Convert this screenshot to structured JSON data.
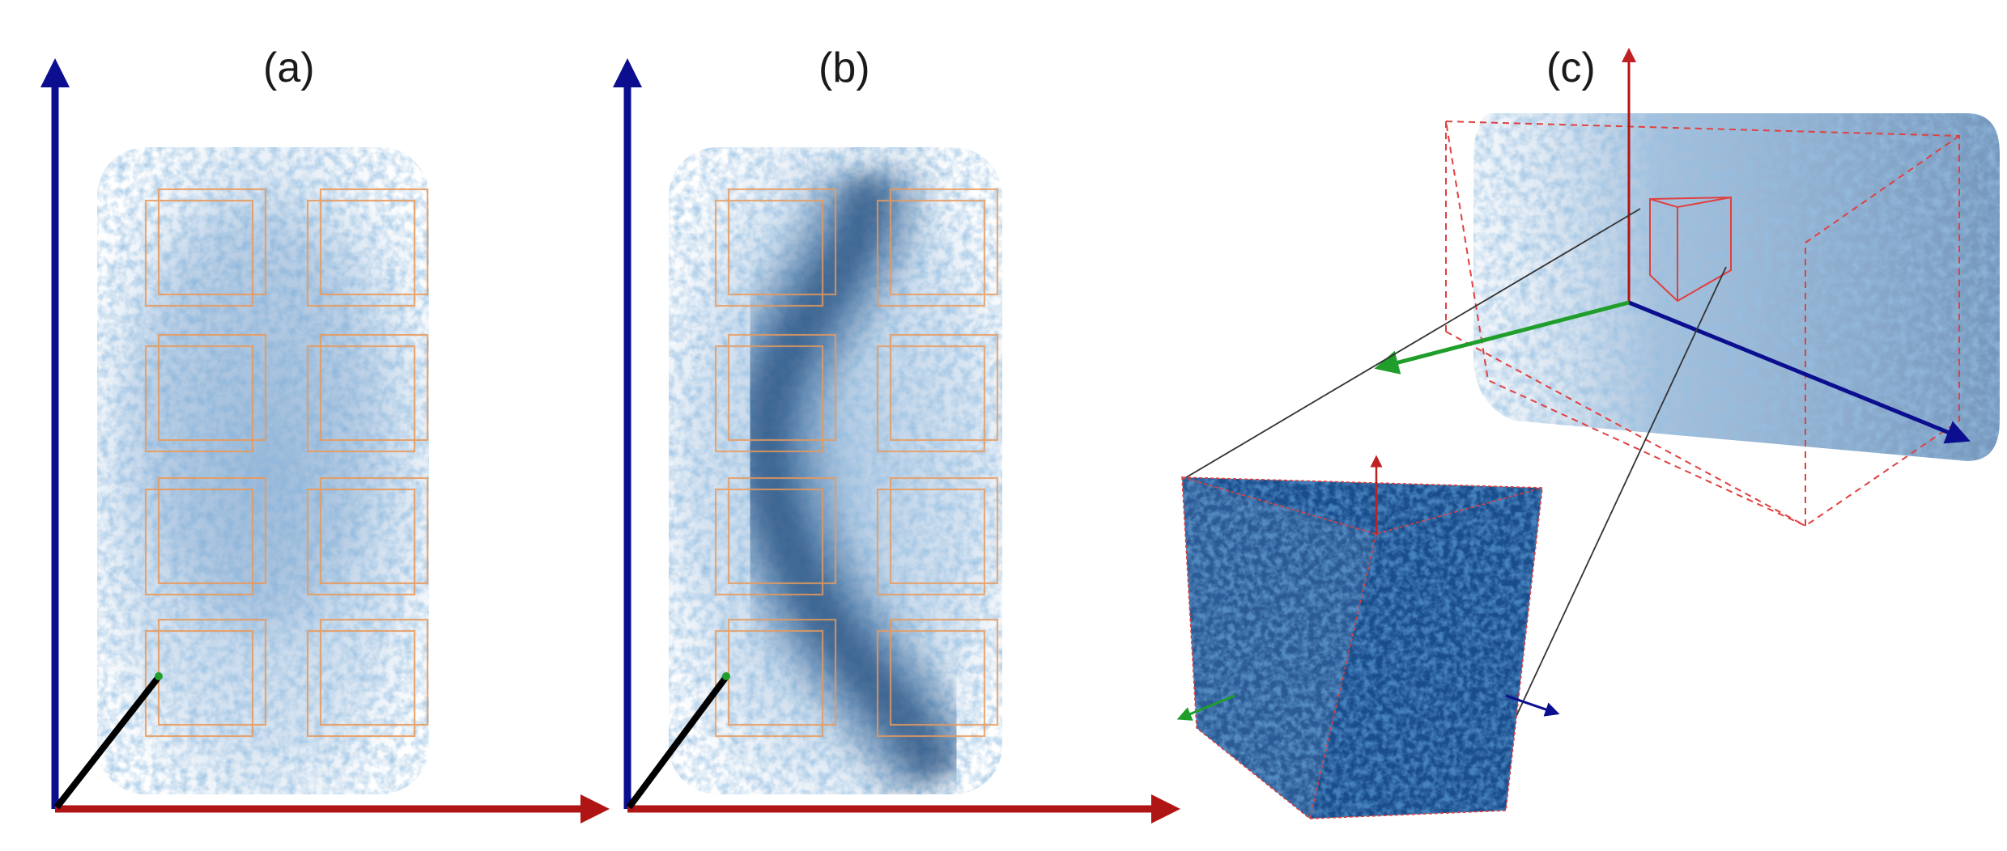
{
  "figure": {
    "panels": [
      {
        "id": "a",
        "label": "(a)",
        "sub_volume_boxes": 8
      },
      {
        "id": "b",
        "label": "(b)",
        "sub_volume_boxes": 8
      },
      {
        "id": "c",
        "label": "(c)"
      }
    ]
  },
  "colors": {
    "axis_vertical": "#0b0f8f",
    "axis_horizontal": "#b01515",
    "axis_depth_ab": "#000000",
    "axis_depth_c": "#1f9e2b",
    "volume_tint": "#5a8fc4",
    "pore_dark": "#1e4f86",
    "box_outline": "#e89a5c",
    "bounding_box_c": "#e04040",
    "inset_cube": "#0f3f80"
  },
  "icons": [
    "arrow-icon"
  ]
}
